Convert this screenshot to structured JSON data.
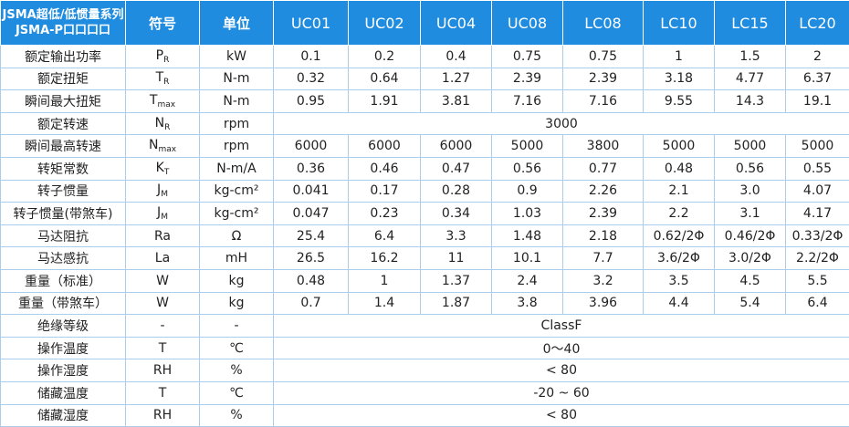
{
  "table": {
    "header": {
      "title_lines": [
        "JSMA超低/低惯量系列",
        "JSMA-P口口口口"
      ],
      "symbol": "符号",
      "unit": "单位",
      "models": [
        "UC01",
        "UC02",
        "UC04",
        "UC08",
        "LC08",
        "LC10",
        "LC15",
        "LC20"
      ]
    },
    "rows": [
      {
        "label": "额定输出功率",
        "symbol": {
          "main": "P",
          "sub": "R"
        },
        "unit": "kW",
        "values": [
          "0.1",
          "0.2",
          "0.4",
          "0.75",
          "0.75",
          "1",
          "1.5",
          "2"
        ]
      },
      {
        "label": "额定扭矩",
        "symbol": {
          "main": "T",
          "sub": "R"
        },
        "unit": "N-m",
        "values": [
          "0.32",
          "0.64",
          "1.27",
          "2.39",
          "2.39",
          "3.18",
          "4.77",
          "6.37"
        ]
      },
      {
        "label": "瞬间最大扭矩",
        "symbol": {
          "main": "T",
          "sub": "max"
        },
        "unit": "N-m",
        "values": [
          "0.95",
          "1.91",
          "3.81",
          "7.16",
          "7.16",
          "9.55",
          "14.3",
          "19.1"
        ]
      },
      {
        "label": "额定转速",
        "symbol": {
          "main": "N",
          "sub": "R"
        },
        "unit": "rpm",
        "values": [
          "3000"
        ]
      },
      {
        "label": "瞬间最高转速",
        "symbol": {
          "main": "N",
          "sub": "max"
        },
        "unit": "rpm",
        "values": [
          "6000",
          "6000",
          "6000",
          "5000",
          "3800",
          "5000",
          "5000",
          "5000"
        ]
      },
      {
        "label": "转矩常数",
        "symbol": {
          "main": "K",
          "sub": "T"
        },
        "unit": "N-m/A",
        "values": [
          "0.36",
          "0.46",
          "0.47",
          "0.56",
          "0.77",
          "0.48",
          "0.56",
          "0.55"
        ]
      },
      {
        "label": "转子惯量",
        "symbol": {
          "main": "J",
          "sub": "M"
        },
        "unit": "kg-cm²",
        "values": [
          "0.041",
          "0.17",
          "0.28",
          "0.9",
          "2.26",
          "2.1",
          "3.0",
          "4.07"
        ]
      },
      {
        "label": "转子惯量(带煞车)",
        "symbol": {
          "main": "J",
          "sub": "M"
        },
        "unit": "kg-cm²",
        "values": [
          "0.047",
          "0.23",
          "0.34",
          "1.03",
          "2.39",
          "2.2",
          "3.1",
          "4.17"
        ]
      },
      {
        "label": "马达阻抗",
        "symbol": "Ra",
        "unit": "Ω",
        "values": [
          "25.4",
          "6.4",
          "3.3",
          "1.48",
          "2.18",
          "0.62/2Φ",
          "0.46/2Φ",
          "0.33/2Φ"
        ]
      },
      {
        "label": "马达感抗",
        "symbol": "La",
        "unit": "mH",
        "values": [
          "26.5",
          "16.2",
          "11",
          "10.1",
          "7.7",
          "3.6/2Φ",
          "3.0/2Φ",
          "2.2/2Φ"
        ]
      },
      {
        "label": "重量（标准）",
        "symbol": "W",
        "unit": "kg",
        "values": [
          "0.48",
          "1",
          "1.37",
          "2.4",
          "3.2",
          "3.5",
          "4.5",
          "5.5"
        ]
      },
      {
        "label": "重量（带煞车）",
        "symbol": "W",
        "unit": "kg",
        "values": [
          "0.7",
          "1.4",
          "1.87",
          "3.8",
          "3.96",
          "4.4",
          "5.4",
          "6.4"
        ]
      },
      {
        "label": "绝缘等级",
        "symbol": "-",
        "unit": "-",
        "values": [
          "ClassF"
        ]
      },
      {
        "label": "操作温度",
        "symbol": "T",
        "unit": "℃",
        "values": [
          "0～40"
        ]
      },
      {
        "label": "操作湿度",
        "symbol": "RH",
        "unit": "%",
        "values": [
          "< 80"
        ]
      },
      {
        "label": "储藏温度",
        "symbol": "T",
        "unit": "℃",
        "values": [
          "-20 ~ 60"
        ]
      },
      {
        "label": "储藏湿度",
        "symbol": "RH",
        "unit": "%",
        "values": [
          "< 80"
        ]
      }
    ]
  }
}
